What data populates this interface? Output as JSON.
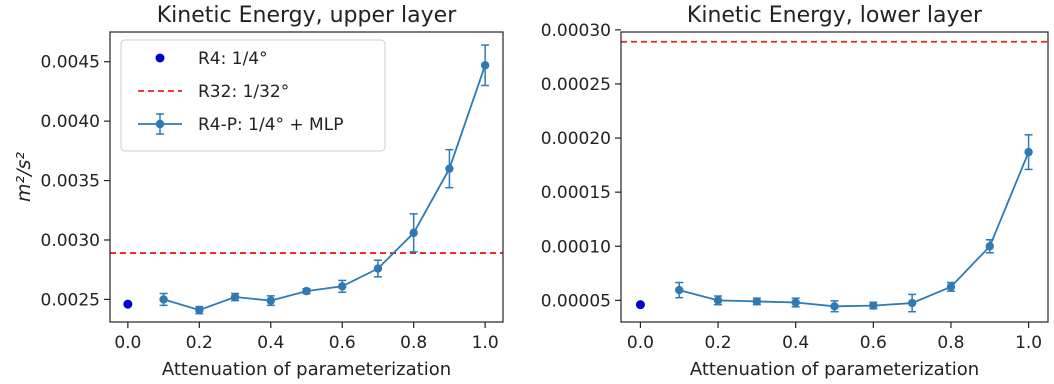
{
  "chart_data": [
    {
      "type": "line",
      "title": "Kinetic Energy, upper layer",
      "xlabel": "Attenuation of parameterization",
      "ylabel": "m²/s²",
      "xlim": [
        -0.05,
        1.05
      ],
      "ylim": [
        0.00231,
        0.00475
      ],
      "xticks": [
        0.0,
        0.2,
        0.4,
        0.6,
        0.8,
        1.0
      ],
      "xtick_labels": [
        "0.0",
        "0.2",
        "0.4",
        "0.6",
        "0.8",
        "1.0"
      ],
      "yticks": [
        0.0025,
        0.003,
        0.0035,
        0.004,
        0.0045
      ],
      "ytick_labels": [
        "0.0025",
        "0.0030",
        "0.0035",
        "0.0040",
        "0.0045"
      ],
      "legend": "top-left",
      "series": [
        {
          "name": "R4: 1/4°",
          "kind": "point",
          "color": "#0000cc",
          "x": [
            0.0
          ],
          "y": [
            0.00246
          ]
        },
        {
          "name": "R32: 1/32°",
          "kind": "hline",
          "color": "#e8231b",
          "y": 0.00289
        },
        {
          "name": "R4-P: 1/4° + MLP",
          "kind": "errorbar",
          "color": "#2e7ab5",
          "x": [
            0.1,
            0.2,
            0.3,
            0.4,
            0.5,
            0.6,
            0.7,
            0.8,
            0.9,
            1.0
          ],
          "y": [
            0.0025,
            0.00241,
            0.00252,
            0.00249,
            0.00257,
            0.00261,
            0.00276,
            0.00306,
            0.0036,
            0.00447
          ],
          "err": [
            5e-05,
            3e-05,
            3e-05,
            4e-05,
            2e-05,
            5e-05,
            7e-05,
            0.00016,
            0.00016,
            0.00017
          ]
        }
      ]
    },
    {
      "type": "line",
      "title": "Kinetic Energy, lower layer",
      "xlabel": "Attenuation of parameterization",
      "ylabel": "",
      "xlim": [
        -0.05,
        1.05
      ],
      "ylim": [
        3e-05,
        0.000298
      ],
      "xticks": [
        0.0,
        0.2,
        0.4,
        0.6,
        0.8,
        1.0
      ],
      "xtick_labels": [
        "0.0",
        "0.2",
        "0.4",
        "0.6",
        "0.8",
        "1.0"
      ],
      "yticks": [
        5e-05,
        0.0001,
        0.00015,
        0.0002,
        0.00025,
        0.0003
      ],
      "ytick_labels": [
        "0.00005",
        "0.00010",
        "0.00015",
        "0.00020",
        "0.00025",
        "0.00030"
      ],
      "series": [
        {
          "name": "R4: 1/4°",
          "kind": "point",
          "color": "#0000cc",
          "x": [
            0.0
          ],
          "y": [
            4.6e-05
          ]
        },
        {
          "name": "R32: 1/32°",
          "kind": "hline",
          "color": "#e8231b",
          "y": 0.000289
        },
        {
          "name": "R4-P: 1/4° + MLP",
          "kind": "errorbar",
          "color": "#2e7ab5",
          "x": [
            0.1,
            0.2,
            0.3,
            0.4,
            0.5,
            0.6,
            0.7,
            0.8,
            0.9,
            1.0
          ],
          "y": [
            5.95e-05,
            5e-05,
            4.9e-05,
            4.8e-05,
            4.45e-05,
            4.52e-05,
            4.75e-05,
            6.25e-05,
            0.0001,
            0.000187
          ],
          "err": [
            7e-06,
            4e-06,
            3e-06,
            4e-06,
            5e-06,
            3e-06,
            8e-06,
            4e-06,
            6e-06,
            1.6e-05
          ]
        }
      ]
    }
  ]
}
